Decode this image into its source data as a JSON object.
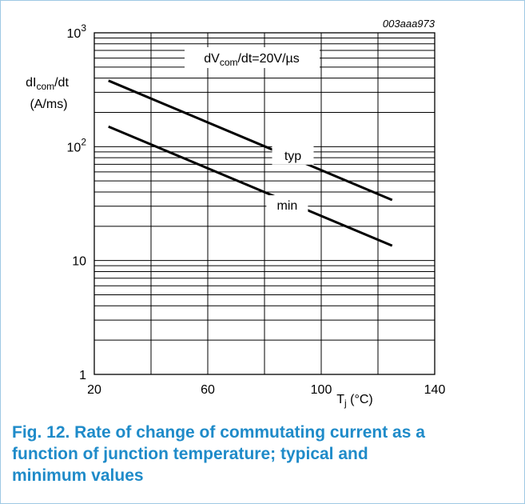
{
  "figure_id": "003aaa973",
  "caption": "Fig. 12. Rate of change of commutating current as a function of junction temperature; typical and minimum values",
  "chart_data": {
    "type": "line",
    "x_axis": {
      "label": "T",
      "label_sub": "j",
      "label_unit": " (°C)",
      "range": [
        20,
        140
      ],
      "ticks": [
        20,
        60,
        100,
        140
      ],
      "tick_labels": [
        "20",
        "60",
        "100",
        "140"
      ],
      "minor_step": 20,
      "grid": true
    },
    "y_axis": {
      "label_line1_pre": "dI",
      "label_line1_sub": "com",
      "label_line1_post": "/dt",
      "label_line2": "(A/ms)",
      "scale": "log",
      "range": [
        1,
        1000
      ],
      "ticks": [
        1,
        10,
        100,
        1000
      ],
      "tick_labels": [
        {
          "base": "1",
          "exp": ""
        },
        {
          "base": "10",
          "exp": ""
        },
        {
          "base": "10",
          "exp": "2"
        },
        {
          "base": "10",
          "exp": "3"
        }
      ],
      "grid": true
    },
    "annotation": {
      "pre": "dV",
      "sub": "com",
      "post": "/dt=20V/µs"
    },
    "series": [
      {
        "name": "typ",
        "x": [
          25,
          125
        ],
        "y": [
          380,
          34
        ]
      },
      {
        "name": "min",
        "x": [
          25,
          125
        ],
        "y": [
          150,
          13.5
        ]
      }
    ],
    "colors": {
      "line": "#000000",
      "caption": "#1f8bc9",
      "frame": "#9ec9e4"
    }
  }
}
